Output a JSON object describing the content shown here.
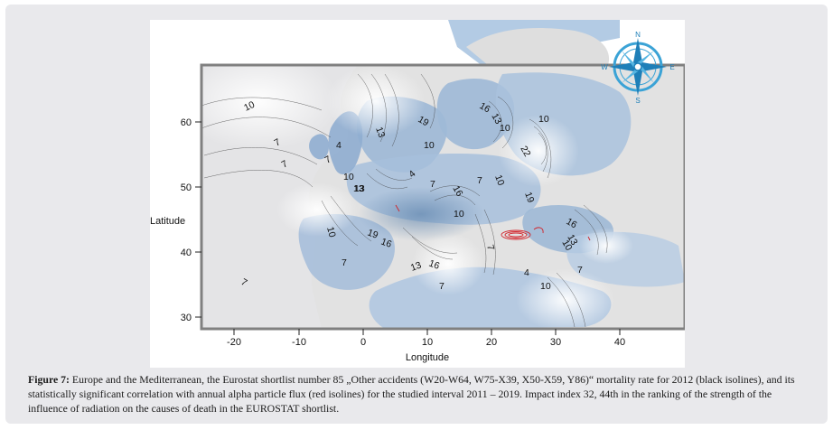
{
  "map": {
    "x_axis_label": "Longitude",
    "y_axis_label": "Latitude",
    "x_ticks": [
      "-20",
      "-10",
      "0",
      "10",
      "20",
      "30",
      "40"
    ],
    "y_ticks": [
      "60",
      "50",
      "40",
      "30"
    ],
    "compass": {
      "n": "N",
      "e": "E",
      "s": "S",
      "w": "W"
    },
    "isoline_labels": [
      "10",
      "7",
      "4",
      "7",
      "7",
      "13",
      "19",
      "10",
      "16",
      "13",
      "10",
      "22",
      "10",
      "19",
      "13",
      "4",
      "7",
      "16",
      "7",
      "10",
      "13",
      "10",
      "16",
      "13",
      "10",
      "10",
      "19",
      "16",
      "10",
      "7",
      "13",
      "16",
      "7",
      "7",
      "4",
      "7",
      "10"
    ],
    "colors": {
      "sea": "#a9c3df",
      "land": "#d9d9d9",
      "red_isoline": "#d2232a",
      "black_isoline": "#222222"
    }
  },
  "caption": {
    "label": "Figure 7:",
    "text": " Europe and the Mediterranean, the Eurostat shortlist number 85 „Other accidents (W20-W64, W75-X39, X50-X59, Y86)“ mortality rate for 2012 (black isolines), and its statistically significant correlation with annual alpha particle flux (red isolines) for the studied interval 2011 – 2019. Impact index 32, 44th in the ranking of the strength of the influence of radiation on the causes of death in the EUROSTAT shortlist."
  }
}
